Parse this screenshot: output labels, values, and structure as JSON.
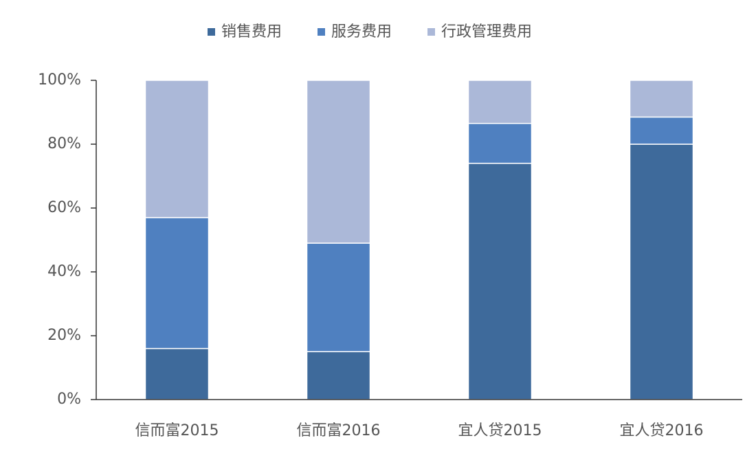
{
  "chart_data": {
    "type": "stacked-bar",
    "categories": [
      "信而富2015",
      "信而富2016",
      "宜人贷2015",
      "宜人贷2016"
    ],
    "series": [
      {
        "name": "销售费用",
        "color": "#3e6a9b",
        "values": [
          16,
          15,
          74,
          80
        ]
      },
      {
        "name": "服务费用",
        "color": "#4f80c0",
        "values": [
          41,
          34,
          12.5,
          8.5
        ]
      },
      {
        "name": "行政管理费用",
        "color": "#abb8d8",
        "values": [
          43,
          51,
          13.5,
          11.5
        ]
      }
    ],
    "ylim": [
      0,
      100
    ],
    "yticks": [
      {
        "value": 0,
        "label": "0%"
      },
      {
        "value": 20,
        "label": "20%"
      },
      {
        "value": 40,
        "label": "40%"
      },
      {
        "value": 60,
        "label": "60%"
      },
      {
        "value": 80,
        "label": "80%"
      },
      {
        "value": 100,
        "label": "100%"
      }
    ],
    "legend": "top"
  }
}
